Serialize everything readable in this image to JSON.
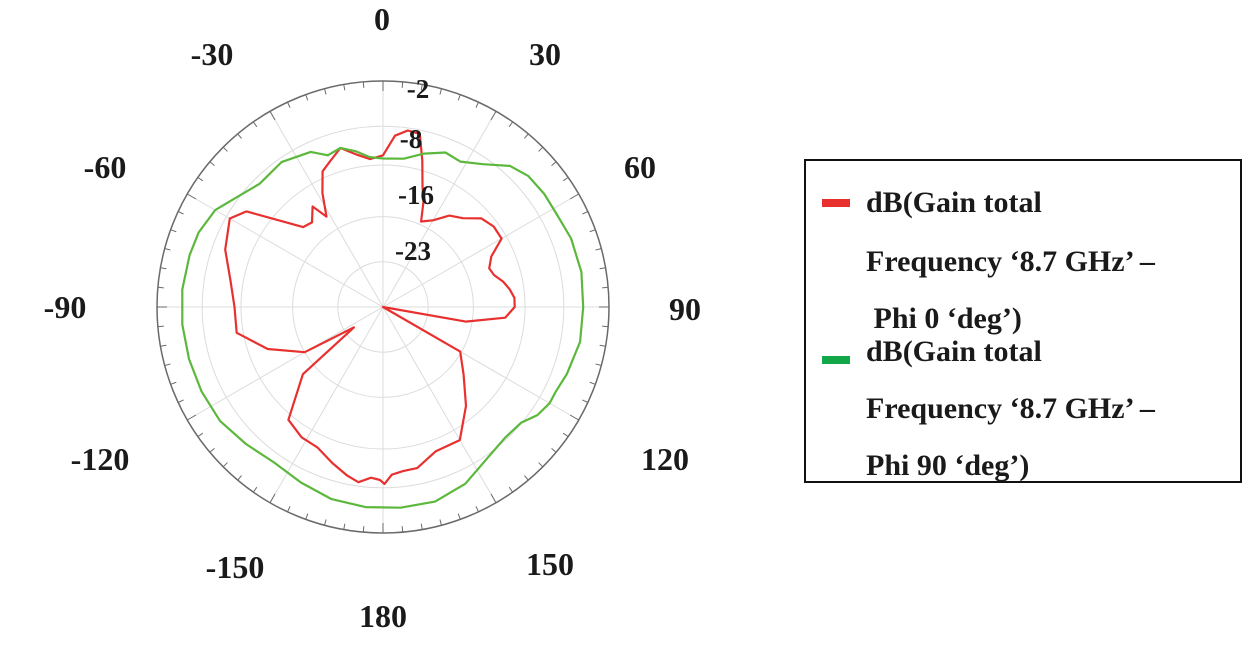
{
  "chart_data": {
    "type": "polar-line",
    "title": "",
    "angle_unit": "deg",
    "angle_zero": "top",
    "angle_direction": "clockwise",
    "angle_ticks": [
      0,
      30,
      60,
      90,
      120,
      150,
      180,
      -150,
      -120,
      -90,
      -60,
      -30
    ],
    "angle_tick_labels": [
      "0",
      "30",
      "60",
      "90",
      "120",
      "150",
      "180",
      "-150",
      "-120",
      "-90",
      "-60",
      "-30"
    ],
    "r_ticks": [
      -2,
      -8,
      -16,
      -23
    ],
    "r_tick_labels": [
      "-2",
      "-8",
      "-16",
      "-23"
    ],
    "r_range": [
      -30,
      5
    ],
    "grid": true,
    "legend_position": "right",
    "series": [
      {
        "name": "dB(Gain total Frequency ‘8.7 GHz’ – Phi 0 ‘deg’)",
        "color": "#e8312f",
        "points": [
          [
            0,
            -6.5
          ],
          [
            4,
            -3.4
          ],
          [
            8,
            -2.4
          ],
          [
            12,
            -2.6
          ],
          [
            15,
            -6.5
          ],
          [
            18,
            -10.2
          ],
          [
            21,
            -12.5
          ],
          [
            24,
            -15.5
          ],
          [
            30,
            -14.5
          ],
          [
            36,
            -12.5
          ],
          [
            42,
            -11.5
          ],
          [
            48,
            -9.5
          ],
          [
            54,
            -8.8
          ],
          [
            60,
            -8.8
          ],
          [
            65,
            -11.5
          ],
          [
            70,
            -12.5
          ],
          [
            74,
            -12.1
          ],
          [
            78,
            -11.0
          ],
          [
            82,
            -10.2
          ],
          [
            86,
            -9.6
          ],
          [
            90,
            -9.6
          ],
          [
            95,
            -11.0
          ],
          [
            100,
            -17.0
          ],
          [
            110,
            -30.0
          ],
          [
            120,
            -16.2
          ],
          [
            130,
            -13.7
          ],
          [
            140,
            -10.0
          ],
          [
            150,
            -6.2
          ],
          [
            160,
            -6.2
          ],
          [
            168,
            -4.5
          ],
          [
            173,
            -4.4
          ],
          [
            177,
            -4.0
          ],
          [
            179.5,
            -2.6
          ],
          [
            181,
            -3.2
          ],
          [
            184,
            -3.5
          ],
          [
            188,
            -2.6
          ],
          [
            192,
            -3.3
          ],
          [
            198,
            -4.6
          ],
          [
            205,
            -6.0
          ],
          [
            212,
            -6.2
          ],
          [
            220,
            -7.2
          ],
          [
            230,
            -13.8
          ],
          [
            235,
            -24.5
          ],
          [
            240,
            -16.0
          ],
          [
            250,
            -11.0
          ],
          [
            260,
            -7.0
          ],
          [
            270,
            -7.0
          ],
          [
            280,
            -6.0
          ],
          [
            290,
            -4.0
          ],
          [
            300,
            -2.6
          ],
          [
            305,
            -4.2
          ],
          [
            315,
            -12.5
          ],
          [
            320,
            -12.9
          ],
          [
            325,
            -11.0
          ],
          [
            328,
            -13.5
          ],
          [
            332,
            -10.0
          ],
          [
            336,
            -7.0
          ],
          [
            340,
            -6.0
          ],
          [
            345,
            -4.5
          ],
          [
            350,
            -6.0
          ],
          [
            355,
            -7.0
          ],
          [
            360,
            -6.5
          ]
        ]
      },
      {
        "name": "dB(Gain total Frequency ‘8.7 GHz’ – Phi 90 ‘deg’)",
        "color": "#5cb83c",
        "points": [
          [
            0,
            -7.0
          ],
          [
            8,
            -6.8
          ],
          [
            15,
            -5.4
          ],
          [
            22,
            -4.2
          ],
          [
            28,
            -4.5
          ],
          [
            35,
            -3.0
          ],
          [
            42,
            -0.6
          ],
          [
            48,
            0.3
          ],
          [
            55,
            0.5
          ],
          [
            62,
            0.5
          ],
          [
            70,
            1.0
          ],
          [
            80,
            1.2
          ],
          [
            90,
            1.0
          ],
          [
            100,
            1.0
          ],
          [
            110,
            0.3
          ],
          [
            116,
            -0.2
          ],
          [
            120,
            -0.2
          ],
          [
            125,
            -0.8
          ],
          [
            130,
            -2.1
          ],
          [
            137,
            -2.3
          ],
          [
            145,
            -1.6
          ],
          [
            155,
            0.2
          ],
          [
            165,
            1.2
          ],
          [
            175,
            1.2
          ],
          [
            185,
            1.1
          ],
          [
            195,
            0.8
          ],
          [
            205,
            0.0
          ],
          [
            215,
            -0.6
          ],
          [
            225,
            0.0
          ],
          [
            235,
            0.8
          ],
          [
            245,
            1.0
          ],
          [
            255,
            1.1
          ],
          [
            265,
            1.2
          ],
          [
            275,
            1.2
          ],
          [
            285,
            1.0
          ],
          [
            292,
            0.8
          ],
          [
            300,
            0.0
          ],
          [
            306,
            -1.5
          ],
          [
            315,
            -3.0
          ],
          [
            325,
            -2.6
          ],
          [
            335,
            -3.5
          ],
          [
            340,
            -5.0
          ],
          [
            345,
            -4.5
          ],
          [
            350,
            -5.5
          ],
          [
            355,
            -6.7
          ],
          [
            360,
            -7.0
          ]
        ]
      }
    ]
  },
  "legend": {
    "entries": [
      {
        "lines": [
          "dB(Gain total",
          "Frequency ‘8.7 GHz’ –",
          " Phi 0 ‘deg’)"
        ]
      },
      {
        "lines": [
          "dB(Gain total",
          "Frequency ‘8.7 GHz’ –",
          "Phi 90 ‘deg’)"
        ]
      }
    ]
  },
  "colors": {
    "phi0": "#e8312f",
    "phi90": "#5cb83c",
    "legend_phi0_swatch": "#e8312f",
    "legend_phi90_swatch": "#12a84a",
    "grid": "#dcdcdc",
    "axis": "#6a6a6a"
  }
}
